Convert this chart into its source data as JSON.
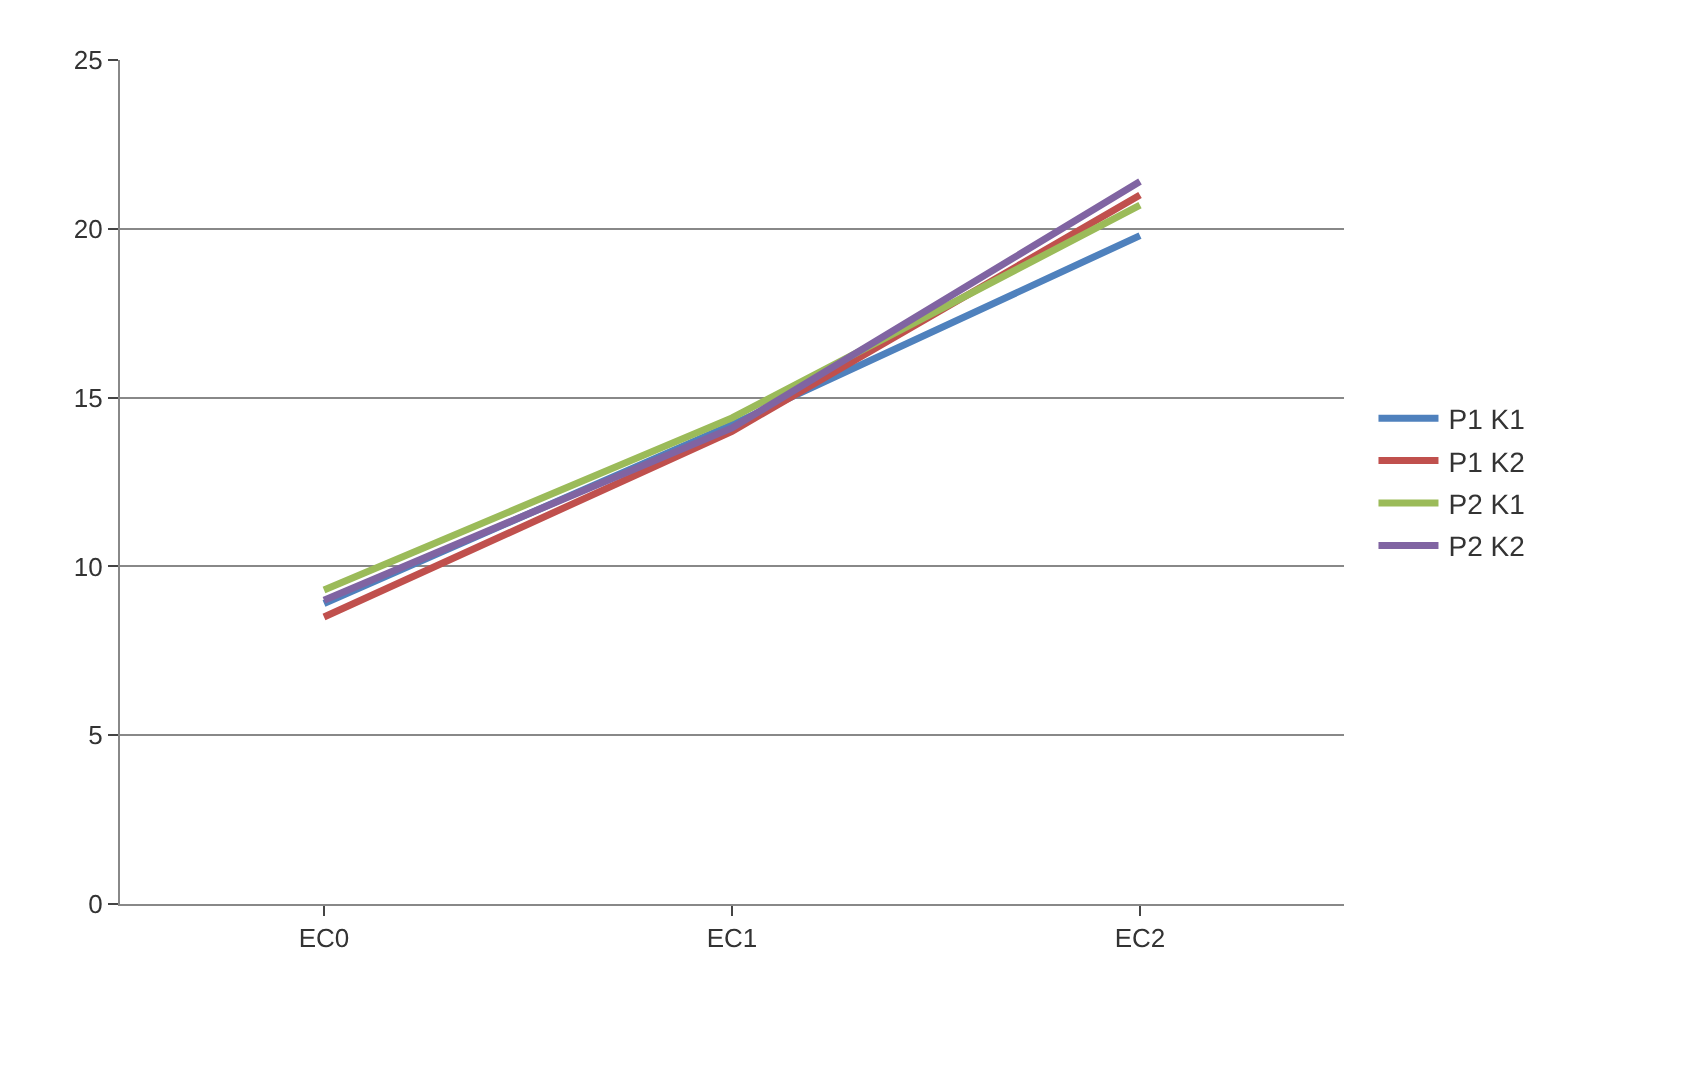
{
  "chart_data": {
    "type": "line",
    "categories": [
      "EC0",
      "EC1",
      "EC2"
    ],
    "series": [
      {
        "name": "P1 K1",
        "color": "#4f81bd",
        "values": [
          8.9,
          14.2,
          19.8
        ]
      },
      {
        "name": "P1 K2",
        "color": "#c0504d",
        "values": [
          8.5,
          14.0,
          21.0
        ]
      },
      {
        "name": "P2 K1",
        "color": "#9bbb59",
        "values": [
          9.3,
          14.4,
          20.7
        ]
      },
      {
        "name": "P2 K2",
        "color": "#8064a2",
        "values": [
          9.0,
          14.1,
          21.4
        ]
      }
    ],
    "ylim": [
      0,
      25
    ],
    "yticks": [
      0,
      5,
      10,
      15,
      20,
      25
    ],
    "grid": "y",
    "legend": "right",
    "marker": "none",
    "line_style": "solid"
  }
}
